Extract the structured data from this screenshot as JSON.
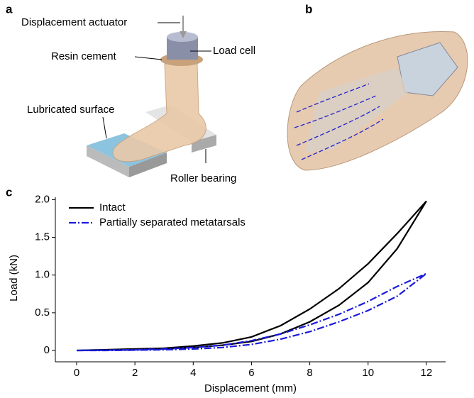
{
  "panels": {
    "a": "a",
    "b": "b",
    "c": "c"
  },
  "panel_a": {
    "labels": [
      "Displacement actuator",
      "Resin cement",
      "Load cell",
      "Lubricated surface",
      "Roller bearing"
    ]
  },
  "chart_data": {
    "type": "line",
    "x_label": "Displacement (mm)",
    "y_label": "Load (kN)",
    "x": [
      0,
      1,
      2,
      3,
      4,
      5,
      6,
      7,
      8,
      9,
      10,
      11,
      12,
      11,
      10,
      9,
      8,
      7,
      6,
      5,
      4,
      3,
      2,
      1,
      0
    ],
    "series": [
      {
        "name": "Intact",
        "color": "#000000",
        "style": "solid",
        "values": [
          0,
          0.005,
          0.01,
          0.02,
          0.04,
          0.07,
          0.12,
          0.22,
          0.38,
          0.6,
          0.9,
          1.35,
          1.98,
          1.55,
          1.15,
          0.82,
          0.55,
          0.33,
          0.18,
          0.1,
          0.06,
          0.03,
          0.02,
          0.01,
          0
        ]
      },
      {
        "name": "Partially separated metatarsals",
        "color": "#1a1adb",
        "style": "dashdot",
        "values": [
          0,
          0,
          0.005,
          0.01,
          0.02,
          0.04,
          0.08,
          0.15,
          0.25,
          0.38,
          0.53,
          0.72,
          1.02,
          0.85,
          0.65,
          0.48,
          0.34,
          0.22,
          0.13,
          0.07,
          0.04,
          0.02,
          0.01,
          0.005,
          0
        ]
      }
    ],
    "xlim": [
      -0.73,
      12.66
    ],
    "ylim": [
      -0.15,
      2.06
    ],
    "xticks": [
      0,
      2,
      4,
      6,
      8,
      10,
      12
    ],
    "yticks": [
      0,
      0.5,
      {
        "value": 1,
        "label": "1.0"
      },
      1.5,
      {
        "value": 2,
        "label": "2.0"
      }
    ],
    "legend": "upper-left",
    "grid": false
  }
}
